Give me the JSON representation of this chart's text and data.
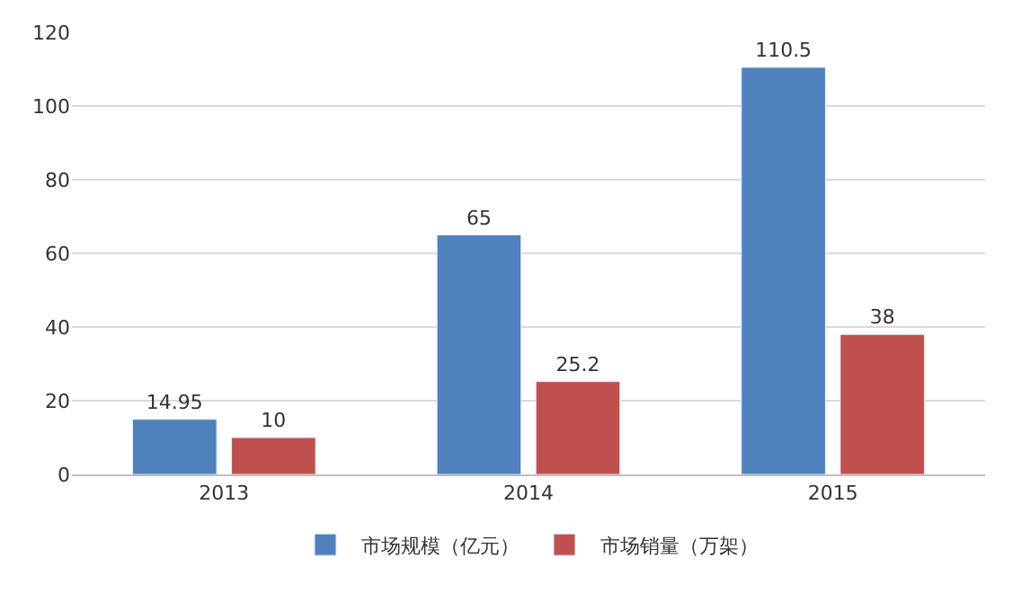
{
  "chart_data": {
    "type": "bar",
    "categories": [
      "2013",
      "2014",
      "2015"
    ],
    "series": [
      {
        "name": "市场规模（亿元）",
        "color": "#4f81bd",
        "values": [
          14.95,
          65,
          110.5
        ]
      },
      {
        "name": "市场销量（万架）",
        "color": "#c0504d",
        "values": [
          10,
          25.2,
          38
        ]
      }
    ],
    "ylim": [
      0,
      120
    ],
    "yticks": [
      0,
      20,
      40,
      60,
      80,
      100,
      120
    ],
    "grid": "y",
    "legend": "bottom",
    "data_labels": true
  }
}
